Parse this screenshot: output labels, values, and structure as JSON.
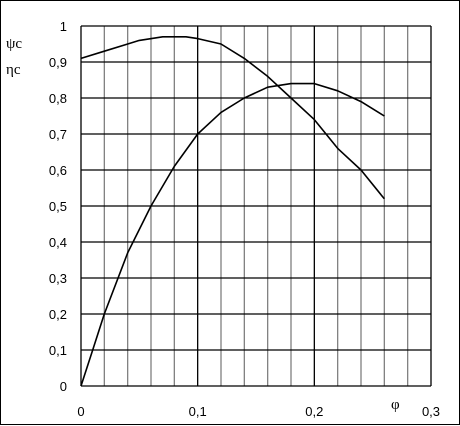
{
  "chart_data": {
    "type": "line",
    "title": "",
    "xlabel": "φ",
    "ylabels": [
      "ψc",
      "ηc"
    ],
    "xlim": [
      0,
      0.3
    ],
    "ylim": [
      0,
      1
    ],
    "x_ticks": [
      0,
      0.1,
      0.2,
      0.3
    ],
    "x_tick_labels": [
      "0",
      "0,1",
      "0,2",
      "0,3"
    ],
    "y_ticks": [
      0,
      0.1,
      0.2,
      0.3,
      0.4,
      0.5,
      0.6,
      0.7,
      0.8,
      0.9,
      1
    ],
    "y_tick_labels": [
      "0",
      "0,1",
      "0,2",
      "0,3",
      "0,4",
      "0,5",
      "0,6",
      "0,7",
      "0,8",
      "0,9",
      "1"
    ],
    "grid": true,
    "minor_x_step": 0.02,
    "colors": {
      "minor_grid": "#808080",
      "major_grid": "#000000",
      "line": "#000000"
    },
    "series": [
      {
        "x": [
          0,
          0.02,
          0.04,
          0.05,
          0.07,
          0.09,
          0.1,
          0.12,
          0.14,
          0.16,
          0.18,
          0.2,
          0.22,
          0.24,
          0.26
        ],
        "values": [
          0.91,
          0.93,
          0.95,
          0.96,
          0.97,
          0.97,
          0.965,
          0.95,
          0.91,
          0.86,
          0.8,
          0.74,
          0.66,
          0.6,
          0.52
        ]
      },
      {
        "x": [
          0,
          0.01,
          0.02,
          0.04,
          0.06,
          0.08,
          0.1,
          0.12,
          0.14,
          0.16,
          0.18,
          0.2,
          0.22,
          0.24,
          0.26
        ],
        "values": [
          0,
          0.1,
          0.2,
          0.37,
          0.5,
          0.61,
          0.7,
          0.76,
          0.8,
          0.83,
          0.84,
          0.84,
          0.82,
          0.79,
          0.75
        ]
      }
    ]
  }
}
